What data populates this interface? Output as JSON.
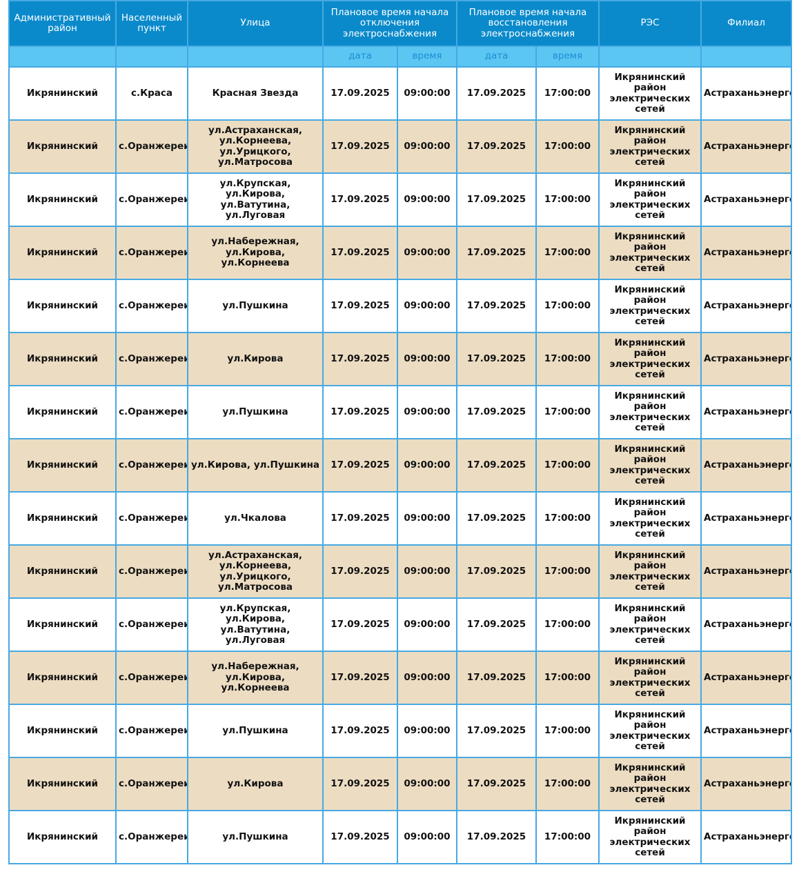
{
  "table": {
    "header": [
      "Административный район",
      "Населенный пункт",
      "Улица",
      "Плановое время начала отключения электроснабжения",
      "Плановое время начала восстановления электроснабжения",
      "РЭС",
      "Филиал"
    ],
    "subheader": [
      "дата",
      "время",
      "дата",
      "время"
    ],
    "rows": [
      [
        "Икрянинский",
        "с.Краса",
        "Красная Звезда",
        "17.09.2025",
        "09:00:00",
        "17.09.2025",
        "17:00:00",
        "Икрянинский район электрических сетей",
        "Астраханьэнерго"
      ],
      [
        "Икрянинский",
        "с.Оранжереи",
        "ул.Астраханская, ул.Корнеева, ул.Урицкого, ул.Матросова",
        "17.09.2025",
        "09:00:00",
        "17.09.2025",
        "17:00:00",
        "Икрянинский район электрических сетей",
        "Астраханьэнерго"
      ],
      [
        "Икрянинский",
        "с.Оранжереи",
        "ул.Крупская, ул.Кирова, ул.Ватутина, ул.Луговая",
        "17.09.2025",
        "09:00:00",
        "17.09.2025",
        "17:00:00",
        "Икрянинский район электрических сетей",
        "Астраханьэнерго"
      ],
      [
        "Икрянинский",
        "с.Оранжереи",
        "ул.Набережная, ул.Кирова, ул.Корнеева",
        "17.09.2025",
        "09:00:00",
        "17.09.2025",
        "17:00:00",
        "Икрянинский район электрических сетей",
        "Астраханьэнерго"
      ],
      [
        "Икрянинский",
        "с.Оранжереи",
        "ул.Пушкина",
        "17.09.2025",
        "09:00:00",
        "17.09.2025",
        "17:00:00",
        "Икрянинский район электрических сетей",
        "Астраханьэнерго"
      ],
      [
        "Икрянинский",
        "с.Оранжереи",
        "ул.Кирова",
        "17.09.2025",
        "09:00:00",
        "17.09.2025",
        "17:00:00",
        "Икрянинский район электрических сетей",
        "Астраханьэнерго"
      ],
      [
        "Икрянинский",
        "с.Оранжереи",
        "ул.Пушкина",
        "17.09.2025",
        "09:00:00",
        "17.09.2025",
        "17:00:00",
        "Икрянинский район электрических сетей",
        "Астраханьэнерго"
      ],
      [
        "Икрянинский",
        "с.Оранжереи",
        "ул.Кирова, ул.Пушкина",
        "17.09.2025",
        "09:00:00",
        "17.09.2025",
        "17:00:00",
        "Икрянинский район электрических сетей",
        "Астраханьэнерго"
      ],
      [
        "Икрянинский",
        "с.Оранжереи",
        "ул.Чкалова",
        "17.09.2025",
        "09:00:00",
        "17.09.2025",
        "17:00:00",
        "Икрянинский район электрических сетей",
        "Астраханьэнерго"
      ],
      [
        "Икрянинский",
        "с.Оранжереи",
        "ул.Астраханская, ул.Корнеева, ул.Урицкого, ул.Матросова",
        "17.09.2025",
        "09:00:00",
        "17.09.2025",
        "17:00:00",
        "Икрянинский район электрических сетей",
        "Астраханьэнерго"
      ],
      [
        "Икрянинский",
        "с.Оранжереи",
        "ул.Крупская, ул.Кирова, ул.Ватутина, ул.Луговая",
        "17.09.2025",
        "09:00:00",
        "17.09.2025",
        "17:00:00",
        "Икрянинский район электрических сетей",
        "Астраханьэнерго"
      ],
      [
        "Икрянинский",
        "с.Оранжереи",
        "ул.Набережная, ул.Кирова, ул.Корнеева",
        "17.09.2025",
        "09:00:00",
        "17.09.2025",
        "17:00:00",
        "Икрянинский район электрических сетей",
        "Астраханьэнерго"
      ],
      [
        "Икрянинский",
        "с.Оранжереи",
        "ул.Пушкина",
        "17.09.2025",
        "09:00:00",
        "17.09.2025",
        "17:00:00",
        "Икрянинский район электрических сетей",
        "Астраханьэнерго"
      ],
      [
        "Икрянинский",
        "с.Оранжереи",
        "ул.Кирова",
        "17.09.2025",
        "09:00:00",
        "17.09.2025",
        "17:00:00",
        "Икрянинский район электрических сетей",
        "Астраханьэнерго"
      ],
      [
        "Икрянинский",
        "с.Оранжереи",
        "ул.Пушкина",
        "17.09.2025",
        "09:00:00",
        "17.09.2025",
        "17:00:00",
        "Икрянинский район электрических сетей",
        "Астраханьэнерго"
      ]
    ]
  }
}
